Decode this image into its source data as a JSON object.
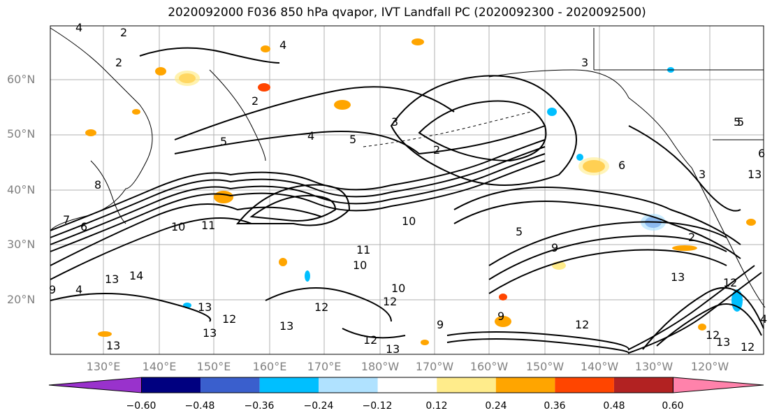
{
  "title": "2020092000 F036 850 hPa qvapor, IVT Landfall PC (2020092300 - 2020092500)",
  "lat_labels": [
    "60°N",
    "50°N",
    "40°N",
    "30°N",
    "20°N"
  ],
  "lon_labels": [
    "130°E",
    "140°E",
    "150°E",
    "160°E",
    "170°E",
    "180°W",
    "170°W",
    "160°W",
    "150°W",
    "140°W",
    "130°W",
    "120°W"
  ],
  "colorbar": {
    "colors": [
      "#9932cc",
      "#000080",
      "#3a5fcd",
      "#00bfff",
      "#b0e2ff",
      "#ffffff",
      "#ffec8b",
      "#ffa500",
      "#ff4500",
      "#b22222",
      "#ff82ab"
    ],
    "tick_labels": [
      "−0.60",
      "−0.48",
      "−0.36",
      "−0.24",
      "−0.12",
      "0.12",
      "0.24",
      "0.36",
      "0.48",
      "0.60"
    ]
  },
  "contour_labels": [
    "2",
    "2",
    "4",
    "4",
    "2",
    "5",
    "4",
    "5",
    "3",
    "2",
    "6",
    "5",
    "6",
    "8",
    "7",
    "6",
    "9",
    "10",
    "11",
    "13",
    "14",
    "4",
    "13",
    "13",
    "12",
    "13",
    "12",
    "13",
    "12",
    "13",
    "9",
    "11",
    "10",
    "10",
    "12",
    "9",
    "12",
    "13",
    "12",
    "4",
    "13",
    "12",
    "5",
    "2",
    "3",
    "5",
    "10",
    "3",
    "13",
    "9",
    "12"
  ],
  "map_style": {
    "contour_color": "#000000",
    "grid_color": "#b0b0b0",
    "coast_color": "#000000"
  }
}
